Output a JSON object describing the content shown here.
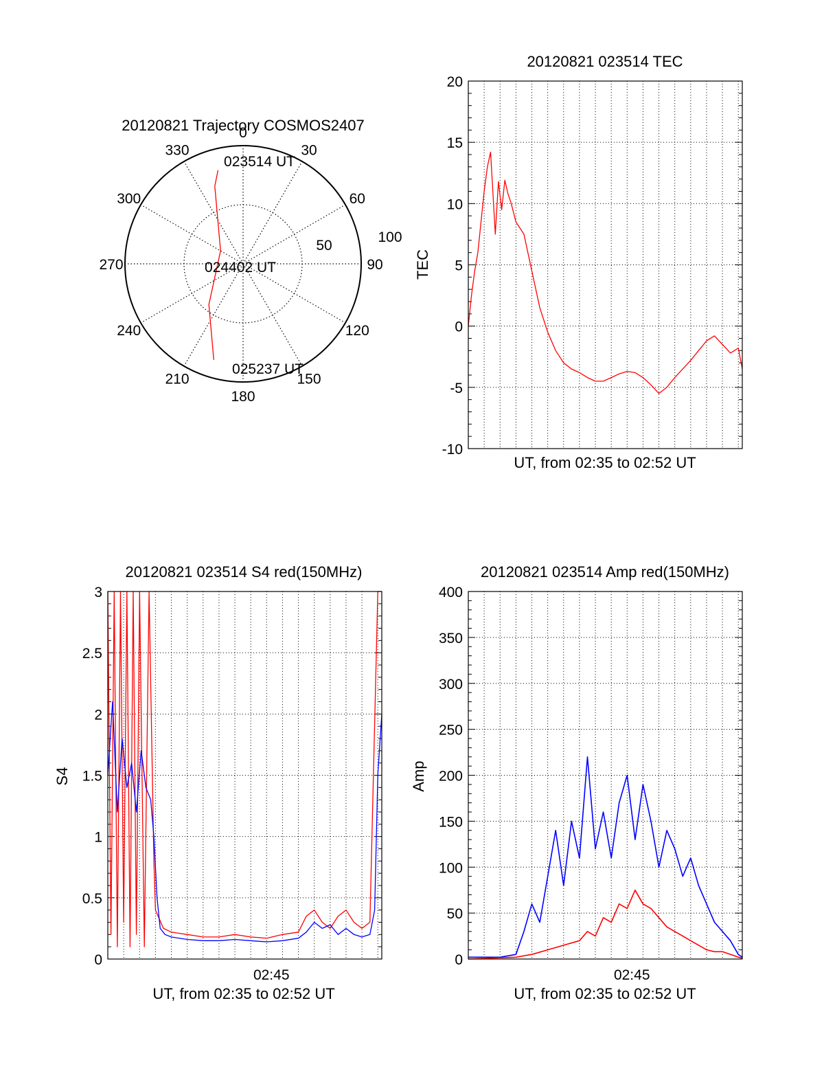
{
  "colors": {
    "red": "#ff0000",
    "blue": "#0000ff",
    "axis": "#000000",
    "grid": "#000000"
  },
  "chart_data": [
    {
      "id": "trajectory",
      "type": "polar",
      "title": "20120821 Trajectory COSMOS2407",
      "angle_labels": [
        "0",
        "30",
        "60",
        "90",
        "120",
        "150",
        "180",
        "210",
        "240",
        "270",
        "300",
        "330"
      ],
      "radial_labels": [
        "50",
        "100"
      ],
      "rlim": [
        0,
        100
      ],
      "grid": true,
      "points": [
        {
          "label": "023514 UT",
          "az": 345,
          "el": 8
        },
        {
          "az": 340,
          "el": 20
        },
        {
          "label": "024402 UT",
          "az": 300,
          "el": 68
        },
        {
          "az": 220,
          "el": 45
        },
        {
          "label": "025237 UT",
          "az": 197,
          "el": 5
        }
      ]
    },
    {
      "id": "tec",
      "type": "line",
      "title": "20120821 023514 TEC",
      "xlabel": "UT, from 02:35 to 02:52 UT",
      "ylabel": "TEC",
      "ylim": [
        -10,
        20
      ],
      "yticks": [
        "-10",
        "-5",
        "0",
        "5",
        "10",
        "15",
        "20"
      ],
      "xlim": [
        0,
        17.25
      ],
      "grid": true,
      "series": [
        {
          "color": "red",
          "x": [
            0,
            0.2,
            0.4,
            0.6,
            0.8,
            1.0,
            1.2,
            1.4,
            1.5,
            1.7,
            1.9,
            2.1,
            2.3,
            2.5,
            2.7,
            3.0,
            3.5,
            4.0,
            4.5,
            5.0,
            5.5,
            6.0,
            6.5,
            7.0,
            7.5,
            8.0,
            8.5,
            9.0,
            9.5,
            10.0,
            10.5,
            11.0,
            11.5,
            12.0,
            12.5,
            13.0,
            13.5,
            14.0,
            14.5,
            15.0,
            15.5,
            16.0,
            16.5,
            17.0,
            17.25
          ],
          "y": [
            0,
            2.5,
            4.5,
            6.0,
            8.5,
            11,
            13,
            14.2,
            12,
            7.5,
            11.8,
            9.5,
            11.9,
            10.8,
            10,
            8.5,
            7.5,
            4.5,
            1.5,
            -0.5,
            -2,
            -3,
            -3.5,
            -3.8,
            -4.2,
            -4.5,
            -4.5,
            -4.2,
            -3.9,
            -3.7,
            -3.8,
            -4.2,
            -4.8,
            -5.5,
            -5.0,
            -4.2,
            -3.5,
            -2.8,
            -2.0,
            -1.2,
            -0.8,
            -1.5,
            -2.2,
            -1.8,
            -3.5
          ]
        }
      ]
    },
    {
      "id": "s4",
      "type": "line",
      "title": "20120821 023514 S4 red(150MHz)",
      "xlabel": "UT, from 02:35 to 02:52 UT",
      "ylabel": "S4",
      "ylim": [
        0,
        3
      ],
      "yticks": [
        "0",
        "0.5",
        "1",
        "1.5",
        "2",
        "2.5",
        "3"
      ],
      "xticks": [
        {
          "x": 10.3,
          "label": "02:45"
        }
      ],
      "xlim": [
        0,
        17.25
      ],
      "grid": true,
      "series": [
        {
          "color": "red",
          "x": [
            0,
            0.2,
            0.4,
            0.6,
            0.8,
            1.0,
            1.2,
            1.4,
            1.6,
            1.8,
            2.0,
            2.3,
            2.6,
            2.9,
            3.0,
            3.5,
            4.0,
            5.0,
            6.0,
            7.0,
            8.0,
            9.0,
            10.0,
            11.0,
            12.0,
            12.5,
            13.0,
            13.5,
            14.0,
            14.5,
            15.0,
            15.5,
            16.0,
            16.5,
            17.0,
            17.25
          ],
          "y": [
            3,
            0.2,
            3,
            0.1,
            3,
            0.3,
            3,
            0.1,
            3,
            0.2,
            3,
            0.1,
            3,
            0.8,
            0.4,
            0.25,
            0.22,
            0.2,
            0.18,
            0.18,
            0.2,
            0.18,
            0.17,
            0.2,
            0.22,
            0.35,
            0.4,
            0.3,
            0.25,
            0.35,
            0.4,
            0.3,
            0.25,
            0.3,
            3,
            3
          ]
        },
        {
          "color": "blue",
          "x": [
            0,
            0.3,
            0.6,
            0.9,
            1.2,
            1.5,
            1.8,
            2.1,
            2.4,
            2.7,
            2.9,
            3.1,
            3.3,
            3.6,
            4.0,
            5.0,
            6.0,
            7.0,
            8.0,
            9.0,
            10.0,
            11.0,
            12.0,
            12.5,
            13.0,
            13.5,
            14.0,
            14.5,
            15.0,
            15.5,
            16.0,
            16.5,
            16.8,
            17.0,
            17.25
          ],
          "y": [
            1.5,
            2.1,
            1.2,
            1.8,
            1.4,
            1.6,
            1.2,
            1.7,
            1.4,
            1.3,
            1.0,
            0.5,
            0.25,
            0.2,
            0.18,
            0.16,
            0.15,
            0.15,
            0.16,
            0.15,
            0.14,
            0.15,
            0.17,
            0.22,
            0.3,
            0.25,
            0.28,
            0.2,
            0.25,
            0.2,
            0.18,
            0.2,
            0.4,
            1.5,
            2.0
          ]
        }
      ]
    },
    {
      "id": "amp",
      "type": "line",
      "title": "20120821 023514 Amp red(150MHz)",
      "xlabel": "UT, from 02:35 to 02:52 UT",
      "ylabel": "Amp",
      "ylim": [
        0,
        400
      ],
      "yticks": [
        "0",
        "50",
        "100",
        "150",
        "200",
        "250",
        "300",
        "350",
        "400"
      ],
      "xticks": [
        {
          "x": 10.3,
          "label": "02:45"
        }
      ],
      "xlim": [
        0,
        17.25
      ],
      "grid": true,
      "series": [
        {
          "color": "blue",
          "x": [
            0,
            1,
            2,
            3,
            3.5,
            4.0,
            4.5,
            5.0,
            5.5,
            6.0,
            6.5,
            7.0,
            7.5,
            8.0,
            8.5,
            9.0,
            9.5,
            10.0,
            10.5,
            11.0,
            11.5,
            12.0,
            12.5,
            13.0,
            13.5,
            14.0,
            14.5,
            15.0,
            15.5,
            16.0,
            16.5,
            17.0,
            17.25
          ],
          "y": [
            2,
            2,
            2,
            5,
            30,
            60,
            40,
            90,
            140,
            80,
            150,
            110,
            220,
            120,
            160,
            110,
            170,
            200,
            130,
            190,
            150,
            100,
            140,
            120,
            90,
            110,
            80,
            60,
            40,
            30,
            20,
            5,
            2
          ],
          "width": 1.6
        },
        {
          "color": "red",
          "x": [
            0,
            3,
            4,
            5,
            6,
            7,
            7.5,
            8,
            8.5,
            9,
            9.5,
            10,
            10.5,
            11,
            11.5,
            12,
            12.5,
            13,
            13.5,
            14,
            14.5,
            15,
            15.5,
            16,
            16.5,
            17,
            17.25
          ],
          "y": [
            0,
            2,
            5,
            10,
            15,
            20,
            30,
            25,
            45,
            40,
            60,
            55,
            75,
            60,
            55,
            45,
            35,
            30,
            25,
            20,
            15,
            10,
            8,
            8,
            5,
            2,
            1
          ],
          "width": 1.6
        }
      ]
    }
  ]
}
